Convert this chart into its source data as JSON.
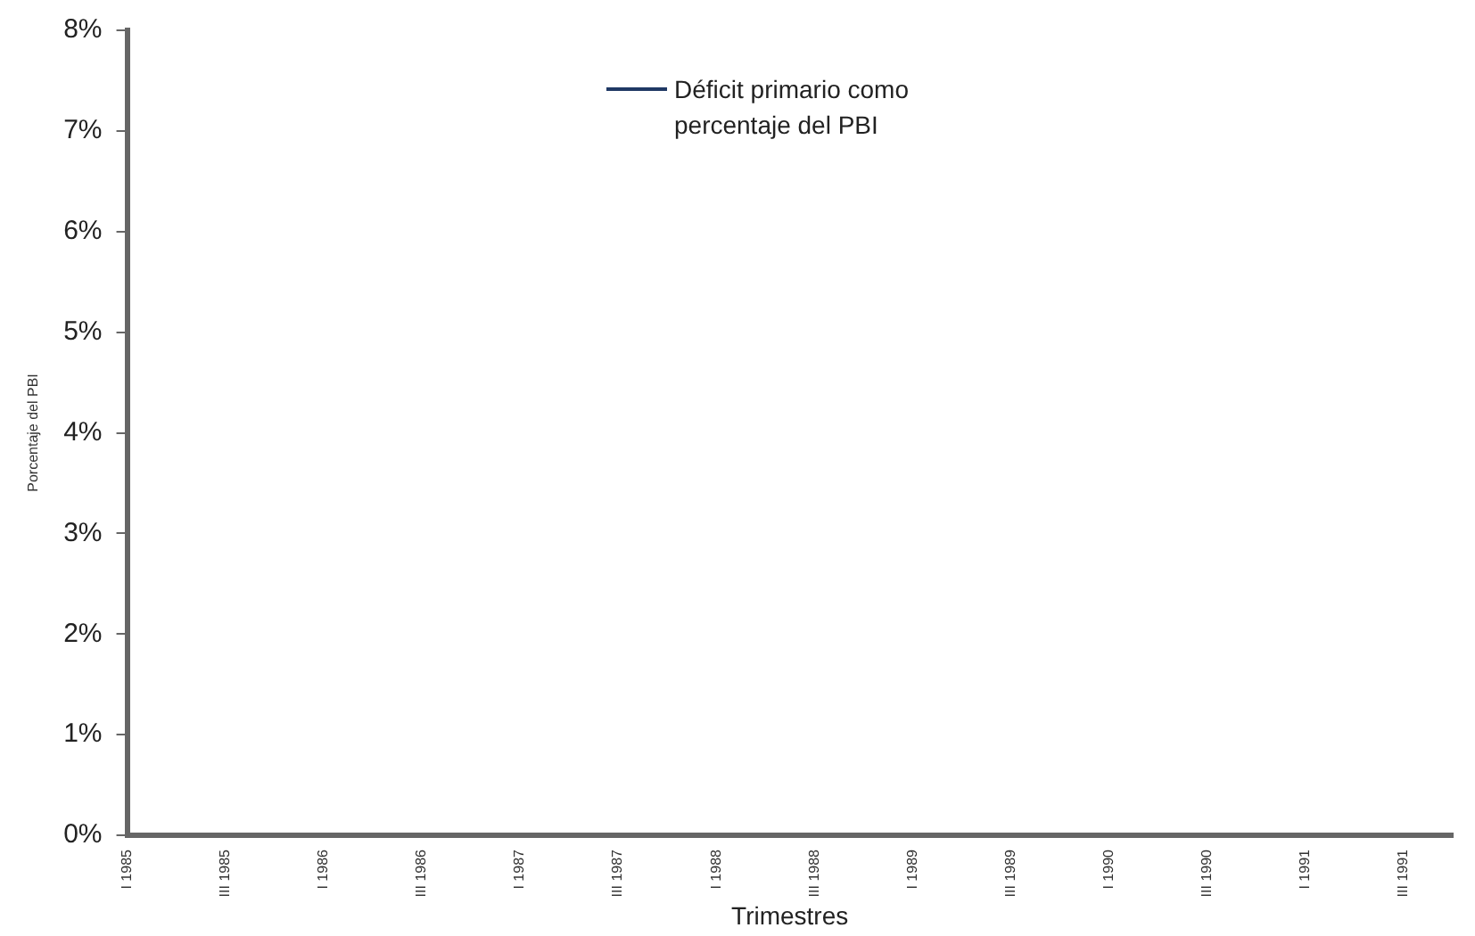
{
  "chart_data": {
    "type": "line",
    "xlabel": "Trimestres",
    "ylabel": "Porcentaje del PBI",
    "categories": [
      "I 1985",
      null,
      "III 1985",
      null,
      "I 1986",
      null,
      "III 1986",
      null,
      "I 1987",
      null,
      "III 1987",
      null,
      "I 1988",
      null,
      "III 1988",
      null,
      "I 1989",
      null,
      "III 1989",
      null,
      "I 1990",
      null,
      "III 1990",
      null,
      "I 1991",
      null,
      "III 1991",
      null
    ],
    "series": [
      {
        "name": "Déficit primario como percentaje del PBI",
        "color": "#1f3864",
        "values": [
          null,
          null,
          null,
          null,
          null,
          null,
          null,
          null,
          null,
          null,
          null,
          null,
          null,
          null,
          null,
          null,
          null,
          null,
          null,
          null,
          null,
          null,
          null,
          null,
          null,
          null,
          null,
          null
        ]
      }
    ],
    "ylim": [
      0,
      8
    ],
    "yticks": [
      {
        "value": 0,
        "label": "0%"
      },
      {
        "value": 1,
        "label": "1%"
      },
      {
        "value": 2,
        "label": "2%"
      },
      {
        "value": 3,
        "label": "3%"
      },
      {
        "value": 4,
        "label": "4%"
      },
      {
        "value": 5,
        "label": "5%"
      },
      {
        "value": 6,
        "label": "6%"
      },
      {
        "value": 7,
        "label": "7%"
      },
      {
        "value": 8,
        "label": "8%"
      }
    ],
    "grid": false,
    "legend": "top"
  }
}
